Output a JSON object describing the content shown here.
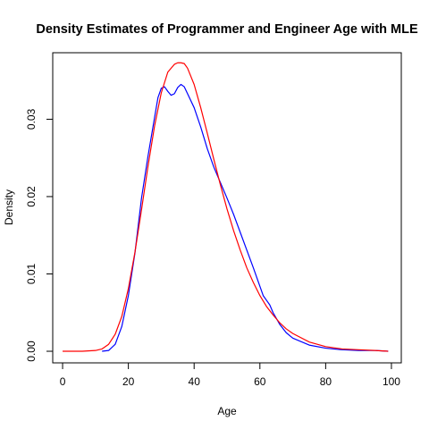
{
  "chart_data": {
    "type": "line",
    "title": "Density Estimates of Programmer and Engineer Age with MLE",
    "xlabel": "Age",
    "ylabel": "Density",
    "xlim": [
      -3,
      103
    ],
    "ylim": [
      -0.0015,
      0.0386
    ],
    "x_ticks": [
      0,
      20,
      40,
      60,
      80,
      100
    ],
    "y_ticks": [
      0.0,
      0.01,
      0.02,
      0.03
    ],
    "x_tick_labels": [
      "0",
      "20",
      "40",
      "60",
      "80",
      "100"
    ],
    "y_tick_labels": [
      "0.00",
      "0.01",
      "0.02",
      "0.03"
    ],
    "grid": false,
    "legend": "none",
    "series": [
      {
        "color": "#0000ff",
        "x": [
          12,
          14,
          16,
          18,
          20,
          22,
          24,
          26,
          28,
          29,
          30,
          31,
          32,
          33,
          34,
          35,
          36,
          37,
          38,
          40,
          42,
          44,
          46,
          48,
          50,
          52,
          54,
          56,
          58,
          60,
          61,
          62,
          63,
          64,
          66,
          68,
          70,
          75,
          80,
          85,
          90,
          95,
          99
        ],
        "y": [
          0.0,
          0.0001,
          0.0009,
          0.0032,
          0.0072,
          0.0127,
          0.0198,
          0.0253,
          0.0303,
          0.0328,
          0.034,
          0.0342,
          0.0336,
          0.0331,
          0.0333,
          0.0341,
          0.0345,
          0.0342,
          0.0333,
          0.0315,
          0.029,
          0.0262,
          0.0238,
          0.0218,
          0.0198,
          0.0177,
          0.0154,
          0.0131,
          0.0108,
          0.0084,
          0.0072,
          0.0066,
          0.006,
          0.005,
          0.0035,
          0.0024,
          0.0017,
          0.0008,
          0.0004,
          0.0002,
          0.0001,
          0.0001,
          0.0
        ]
      },
      {
        "color": "#ff0000",
        "x": [
          0,
          6,
          10,
          12,
          14,
          16,
          18,
          20,
          22,
          24,
          26,
          28,
          30,
          32,
          34,
          35,
          36,
          37,
          38,
          40,
          42,
          44,
          46,
          48,
          50,
          52,
          54,
          56,
          58,
          60,
          62,
          64,
          66,
          68,
          70,
          75,
          80,
          85,
          90,
          95,
          99
        ],
        "y": [
          0.0,
          0.0,
          0.0001,
          0.0003,
          0.0009,
          0.0022,
          0.0045,
          0.0081,
          0.0128,
          0.0183,
          0.024,
          0.0292,
          0.0334,
          0.0361,
          0.0371,
          0.0373,
          0.0373,
          0.0372,
          0.0366,
          0.0345,
          0.0315,
          0.0282,
          0.0248,
          0.0215,
          0.0184,
          0.0156,
          0.0131,
          0.0108,
          0.0089,
          0.0072,
          0.0058,
          0.0047,
          0.0037,
          0.0029,
          0.0023,
          0.0012,
          0.0006,
          0.0003,
          0.0002,
          0.0001,
          0.0
        ]
      }
    ]
  }
}
